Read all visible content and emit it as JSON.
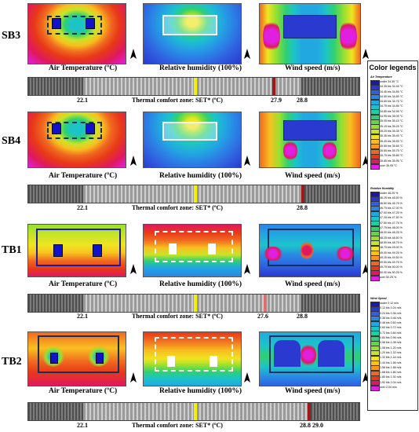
{
  "rows": [
    {
      "id": "SB3",
      "label": "SB3",
      "bar_values": {
        "a": "22.1",
        "b": "27.9",
        "c": "28.8"
      }
    },
    {
      "id": "SB4",
      "label": "SB4",
      "bar_values": {
        "a": "22.1",
        "c": "28.8"
      }
    },
    {
      "id": "TB1",
      "label": "TB1",
      "bar_values": {
        "a": "22.1",
        "b": "27.6",
        "c": "28.8"
      }
    },
    {
      "id": "TB2",
      "label": "TB2",
      "bar_values": {
        "a": "22.1",
        "c": "28.8",
        "d": "29.0"
      }
    }
  ],
  "captions": {
    "air_temperature": "Air Temperature (ºC)",
    "relative_humidity": "Relative humidity (100%)",
    "wind_speed": "Wind speed (m/s)",
    "comfort_zone": "Thermal comfort zone: SET* (ºC)"
  },
  "legend": {
    "title": "Color legends",
    "groups": [
      {
        "head": "Air Temperature",
        "items": [
          {
            "label": "under 34.35 °C",
            "color": "#1a1aa8"
          },
          {
            "label": "34.35 bis 34.45 °C",
            "color": "#2a3ad0"
          },
          {
            "label": "34.45 bis 34.55 °C",
            "color": "#3060e0"
          },
          {
            "label": "34.55 bis 34.65 °C",
            "color": "#2a86e6"
          },
          {
            "label": "34.65 bis 34.75 °C",
            "color": "#22a8e0"
          },
          {
            "label": "34.75 bis 34.85 °C",
            "color": "#1cc4c8"
          },
          {
            "label": "34.85 bis 34.95 °C",
            "color": "#20cfa0"
          },
          {
            "label": "34.95 bis 35.05 °C",
            "color": "#30d070"
          },
          {
            "label": "35.05 bis 35.15 °C",
            "color": "#60d840"
          },
          {
            "label": "35.15 bis 35.25 °C",
            "color": "#98e030"
          },
          {
            "label": "35.25 bis 35.35 °C",
            "color": "#c8e428"
          },
          {
            "label": "35.35 bis 35.45 °C",
            "color": "#f0e420"
          },
          {
            "label": "35.45 bis 35.55 °C",
            "color": "#f8c020"
          },
          {
            "label": "35.55 bis 35.65 °C",
            "color": "#f89820"
          },
          {
            "label": "35.65 bis 35.75 °C",
            "color": "#f06820"
          },
          {
            "label": "35.75 bis 35.85 °C",
            "color": "#e83818"
          },
          {
            "label": "35.85 bis 35.95 °C",
            "color": "#e01860"
          },
          {
            "label": "over 35.95 °C",
            "color": "#e020e0"
          }
        ]
      },
      {
        "head": "Relative Humidity",
        "items": [
          {
            "label": "under 46.25 %",
            "color": "#1a1aa8"
          },
          {
            "label": "46.25 bis 46.50 %",
            "color": "#2a3ad0"
          },
          {
            "label": "46.50 bis 46.75 %",
            "color": "#3060e0"
          },
          {
            "label": "46.75 bis 47.00 %",
            "color": "#2a86e6"
          },
          {
            "label": "47.00 bis 47.25 %",
            "color": "#22a8e0"
          },
          {
            "label": "47.25 bis 47.50 %",
            "color": "#1cc4c8"
          },
          {
            "label": "47.50 bis 47.75 %",
            "color": "#20cfa0"
          },
          {
            "label": "47.75 bis 48.00 %",
            "color": "#30d070"
          },
          {
            "label": "48.00 bis 48.25 %",
            "color": "#60d840"
          },
          {
            "label": "48.25 bis 48.50 %",
            "color": "#98e030"
          },
          {
            "label": "48.50 bis 48.75 %",
            "color": "#c8e428"
          },
          {
            "label": "48.75 bis 49.00 %",
            "color": "#f0e420"
          },
          {
            "label": "49.00 bis 49.25 %",
            "color": "#f8c020"
          },
          {
            "label": "49.25 bis 49.50 %",
            "color": "#f89820"
          },
          {
            "label": "49.50 bis 49.75 %",
            "color": "#f06820"
          },
          {
            "label": "49.75 bis 50.00 %",
            "color": "#e83818"
          },
          {
            "label": "50.00 bis 50.25 %",
            "color": "#e01860"
          },
          {
            "label": "over 50.25 %",
            "color": "#e020e0"
          }
        ]
      },
      {
        "head": "Wind Speed",
        "items": [
          {
            "label": "under 0.12 m/s",
            "color": "#1a1aa8"
          },
          {
            "label": "0.12 bis 0.24 m/s",
            "color": "#2a3ad0"
          },
          {
            "label": "0.24 bis 0.36 m/s",
            "color": "#3060e0"
          },
          {
            "label": "0.36 bis 0.48 m/s",
            "color": "#2a86e6"
          },
          {
            "label": "0.48 bis 0.60 m/s",
            "color": "#22a8e0"
          },
          {
            "label": "0.60 bis 0.72 m/s",
            "color": "#1cc4c8"
          },
          {
            "label": "0.72 bis 0.84 m/s",
            "color": "#20cfa0"
          },
          {
            "label": "0.84 bis 0.96 m/s",
            "color": "#30d070"
          },
          {
            "label": "0.96 bis 1.08 m/s",
            "color": "#60d840"
          },
          {
            "label": "1.08 bis 1.20 m/s",
            "color": "#98e030"
          },
          {
            "label": "1.20 bis 1.32 m/s",
            "color": "#c8e428"
          },
          {
            "label": "1.32 bis 1.44 m/s",
            "color": "#f0e420"
          },
          {
            "label": "1.44 bis 1.56 m/s",
            "color": "#f8c020"
          },
          {
            "label": "1.56 bis 1.68 m/s",
            "color": "#f89820"
          },
          {
            "label": "1.68 bis 1.80 m/s",
            "color": "#f06820"
          },
          {
            "label": "1.80 bis 1.92 m/s",
            "color": "#e83818"
          },
          {
            "label": "1.92 bis 2.04 m/s",
            "color": "#e01860"
          },
          {
            "label": "over 2.04 m/s",
            "color": "#e020e0"
          }
        ]
      }
    ]
  },
  "colors": {
    "comfort_marker": "#f2f200",
    "threshold_marker": "#a01818",
    "bar_light": "#cfcfcf",
    "bar_dark": "#4f4f4f"
  }
}
